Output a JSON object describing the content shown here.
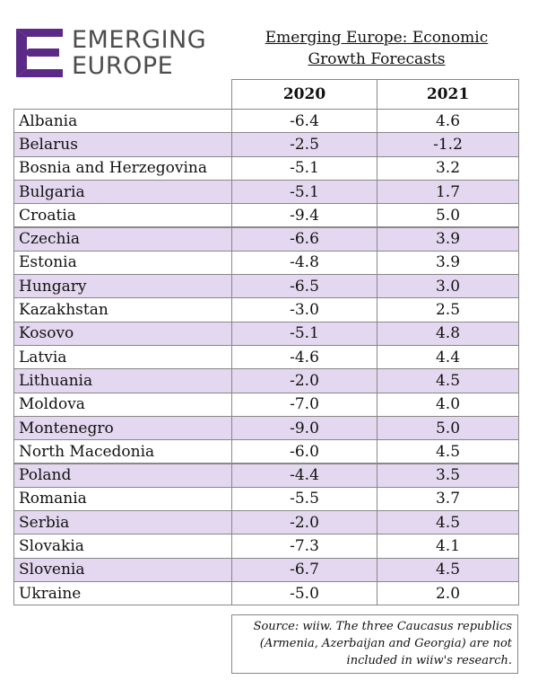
{
  "logo": {
    "line1": "EMERGING",
    "line2": "EUROPE"
  },
  "title": {
    "line1": "Emerging Europe: Economic",
    "line2": "Growth Forecasts"
  },
  "table": {
    "columns": [
      "2020",
      "2021"
    ],
    "rows": [
      [
        "Albania",
        "-6.4",
        "4.6"
      ],
      [
        "Belarus",
        "-2.5",
        "-1.2"
      ],
      [
        "Bosnia and Herzegovina",
        "-5.1",
        "3.2"
      ],
      [
        "Bulgaria",
        "-5.1",
        "1.7"
      ],
      [
        "Croatia",
        "-9.4",
        "5.0"
      ],
      [
        "Czechia",
        "-6.6",
        "3.9"
      ],
      [
        "Estonia",
        "-4.8",
        "3.9"
      ],
      [
        "Hungary",
        "-6.5",
        "3.0"
      ],
      [
        "Kazakhstan",
        "-3.0",
        "2.5"
      ],
      [
        "Kosovo",
        "-5.1",
        "4.8"
      ],
      [
        "Latvia",
        "-4.6",
        "4.4"
      ],
      [
        "Lithuania",
        "-2.0",
        "4.5"
      ],
      [
        "Moldova",
        "-7.0",
        "4.0"
      ],
      [
        "Montenegro",
        "-9.0",
        "5.0"
      ],
      [
        "North Macedonia",
        "-6.0",
        "4.5"
      ],
      [
        "Poland",
        "-4.4",
        "3.5"
      ],
      [
        "Romania",
        "-5.5",
        "3.7"
      ],
      [
        "Serbia",
        "-2.0",
        "4.5"
      ],
      [
        "Slovakia",
        "-7.3",
        "4.1"
      ],
      [
        "Slovenia",
        "-6.7",
        "4.5"
      ],
      [
        "Ukraine",
        "-5.0",
        "2.0"
      ]
    ]
  },
  "note": {
    "line1": "Source: wiiw. The three Caucasus republics",
    "line2": "(Armenia, Azerbaijan and Georgia) are not",
    "line3": "included in wiiw's research."
  }
}
